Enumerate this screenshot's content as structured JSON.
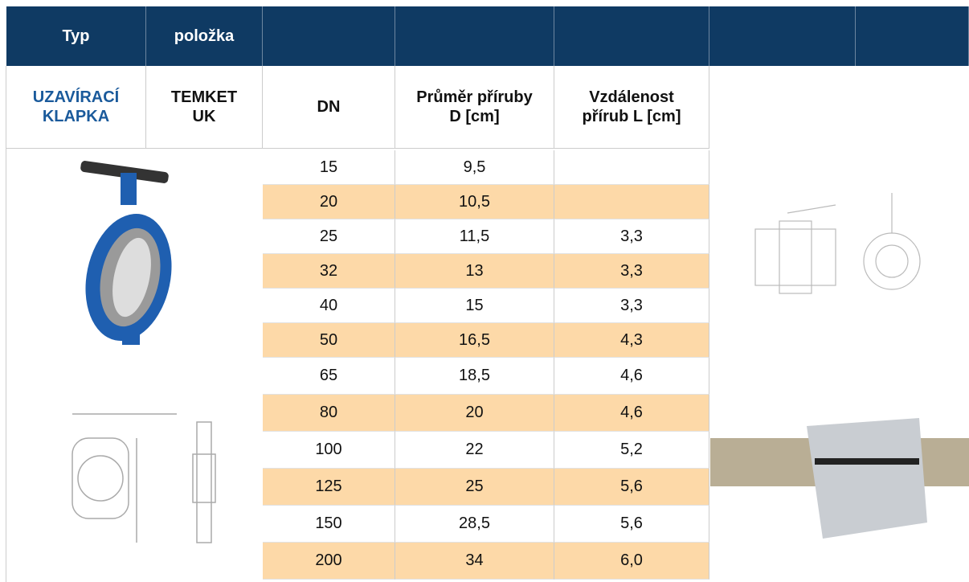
{
  "header": {
    "cells": [
      "Typ",
      "položka"
    ]
  },
  "subheader": {
    "type": "UZAVÍRACÍ KLAPKA",
    "item": "TEMKET UK",
    "columns": [
      "DN",
      "Průměr příruby D [cm]",
      "Vzdálenost přírub L [cm]"
    ]
  },
  "table": {
    "rows": [
      [
        15,
        "9,5",
        null
      ],
      [
        20,
        "10,5",
        null
      ],
      [
        25,
        "11,5",
        "3,3"
      ],
      [
        32,
        13,
        "3,3"
      ],
      [
        40,
        15,
        "3,3"
      ],
      [
        50,
        "16,5",
        "4,3"
      ],
      [
        65,
        "18,5",
        "4,6"
      ],
      [
        80,
        20,
        "4,6"
      ],
      [
        100,
        22,
        "5,2"
      ],
      [
        125,
        25,
        "5,6"
      ],
      [
        150,
        "28,5",
        "5,6"
      ],
      [
        200,
        34,
        "6,0"
      ]
    ]
  }
}
